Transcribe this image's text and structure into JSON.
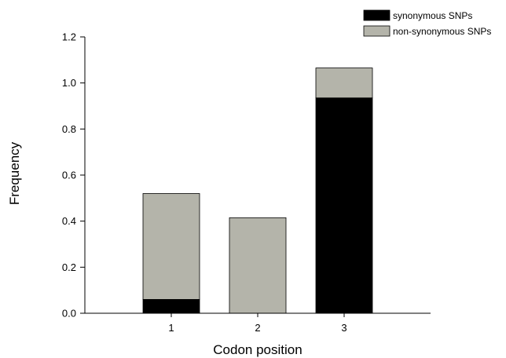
{
  "chart_data": {
    "type": "bar",
    "stacked": true,
    "categories": [
      "1",
      "2",
      "3"
    ],
    "series": [
      {
        "name": "synonymous SNPs",
        "color": "#000000",
        "values": [
          0.06,
          0.0,
          0.935
        ]
      },
      {
        "name": "non-synonymous SNPs",
        "color": "#b4b4aa",
        "values": [
          0.46,
          0.415,
          0.13
        ]
      }
    ],
    "xlabel": "Codon position",
    "ylabel": "Frequency",
    "ylim": [
      0,
      1.2
    ],
    "yticks": [
      "0.0",
      "0.2",
      "0.4",
      "0.6",
      "0.8",
      "1.0",
      "1.2"
    ],
    "grid": false,
    "legend_position": "top-right"
  }
}
